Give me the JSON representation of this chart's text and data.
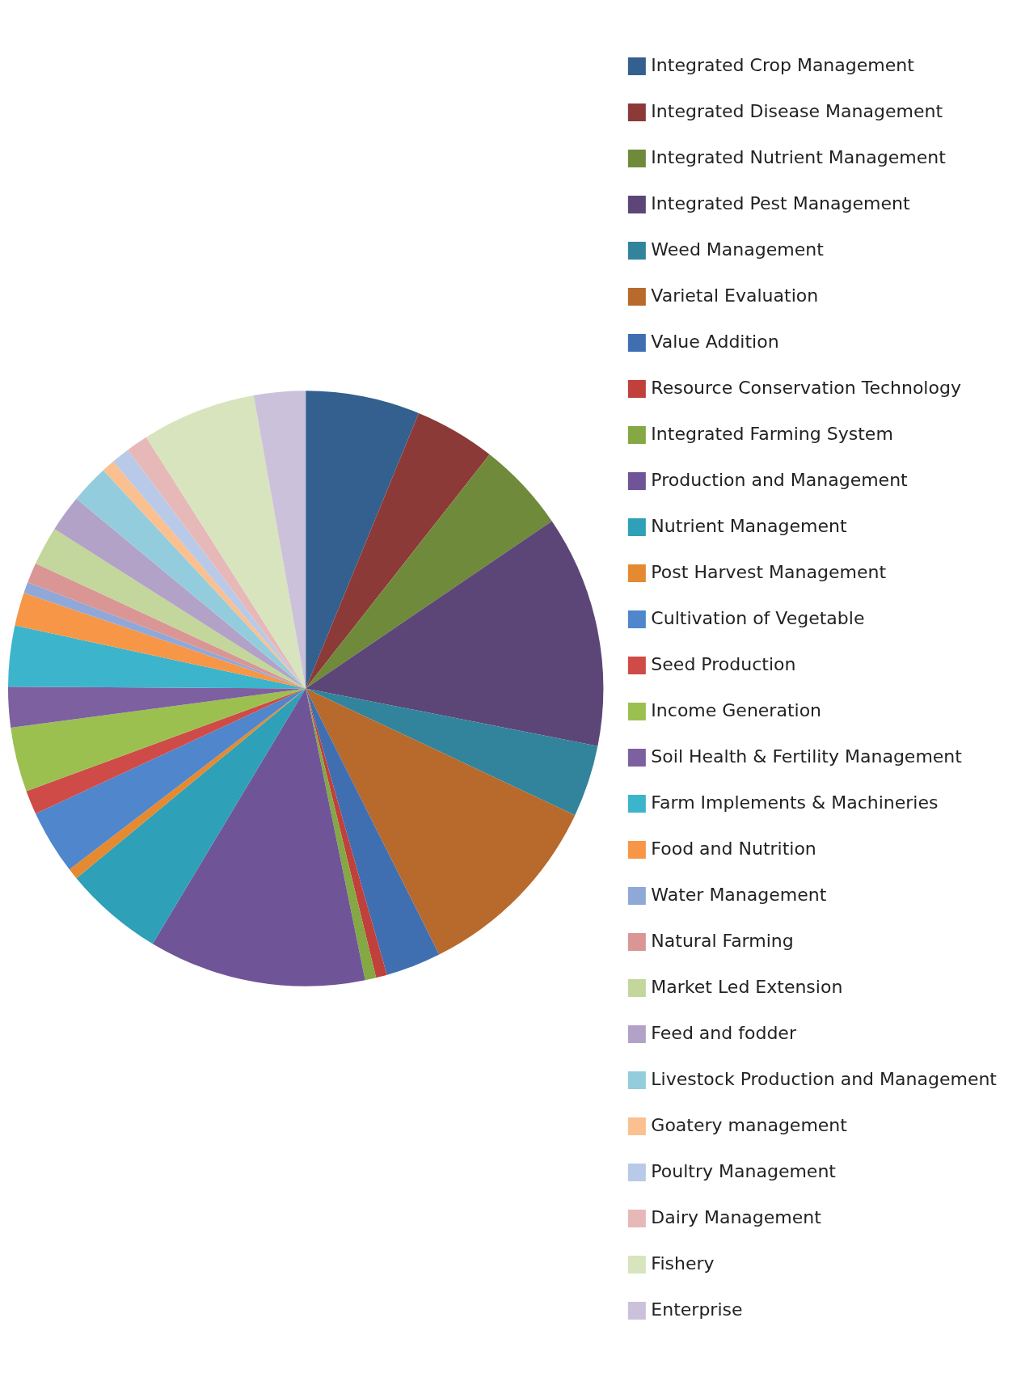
{
  "chart_data": {
    "type": "pie",
    "legend": "right",
    "categories": [
      "Integrated Crop Management",
      "Integrated Disease Management",
      "Integrated Nutrient Management",
      "Integrated Pest Management",
      "Weed Management",
      "Varietal Evaluation",
      "Value Addition",
      "Resource Conservation Technology",
      "Integrated Farming System",
      "Production and Management",
      "Nutrient Management",
      "Post Harvest Management",
      "Cultivation of Vegetable",
      "Seed Production",
      "Income Generation",
      "Soil Health & Fertility Management",
      "Farm Implements & Machineries",
      "Food and Nutrition",
      "Water Management",
      "Natural Farming",
      "Market Led Extension",
      "Feed and fodder",
      "Livestock Production and Management",
      "Goatery management",
      "Poultry Management",
      "Dairy Management",
      "Fishery",
      "Enterprise"
    ],
    "values": [
      6.2,
      4.4,
      4.9,
      12.6,
      3.9,
      10.6,
      3.0,
      0.6,
      0.6,
      11.8,
      5.4,
      0.6,
      3.5,
      1.3,
      3.5,
      2.2,
      3.3,
      1.8,
      0.6,
      1.1,
      2.1,
      2.0,
      2.1,
      0.7,
      1.0,
      1.2,
      6.2,
      2.8
    ],
    "colors": [
      "#34608f",
      "#8c3a38",
      "#6f8a3a",
      "#5c4677",
      "#31849b",
      "#b8692c",
      "#3f6fb0",
      "#c0403c",
      "#84a843",
      "#6f5597",
      "#2ea0b8",
      "#e58a30",
      "#4f86cc",
      "#cf4b47",
      "#9bc04f",
      "#7d60a0",
      "#3cb4cc",
      "#f79646",
      "#8fa8d8",
      "#d99694",
      "#c3d69b",
      "#b3a2c7",
      "#93cddd",
      "#fac090",
      "#b9c9e8",
      "#e6b9b8",
      "#d7e4bd",
      "#ccc1da"
    ]
  }
}
